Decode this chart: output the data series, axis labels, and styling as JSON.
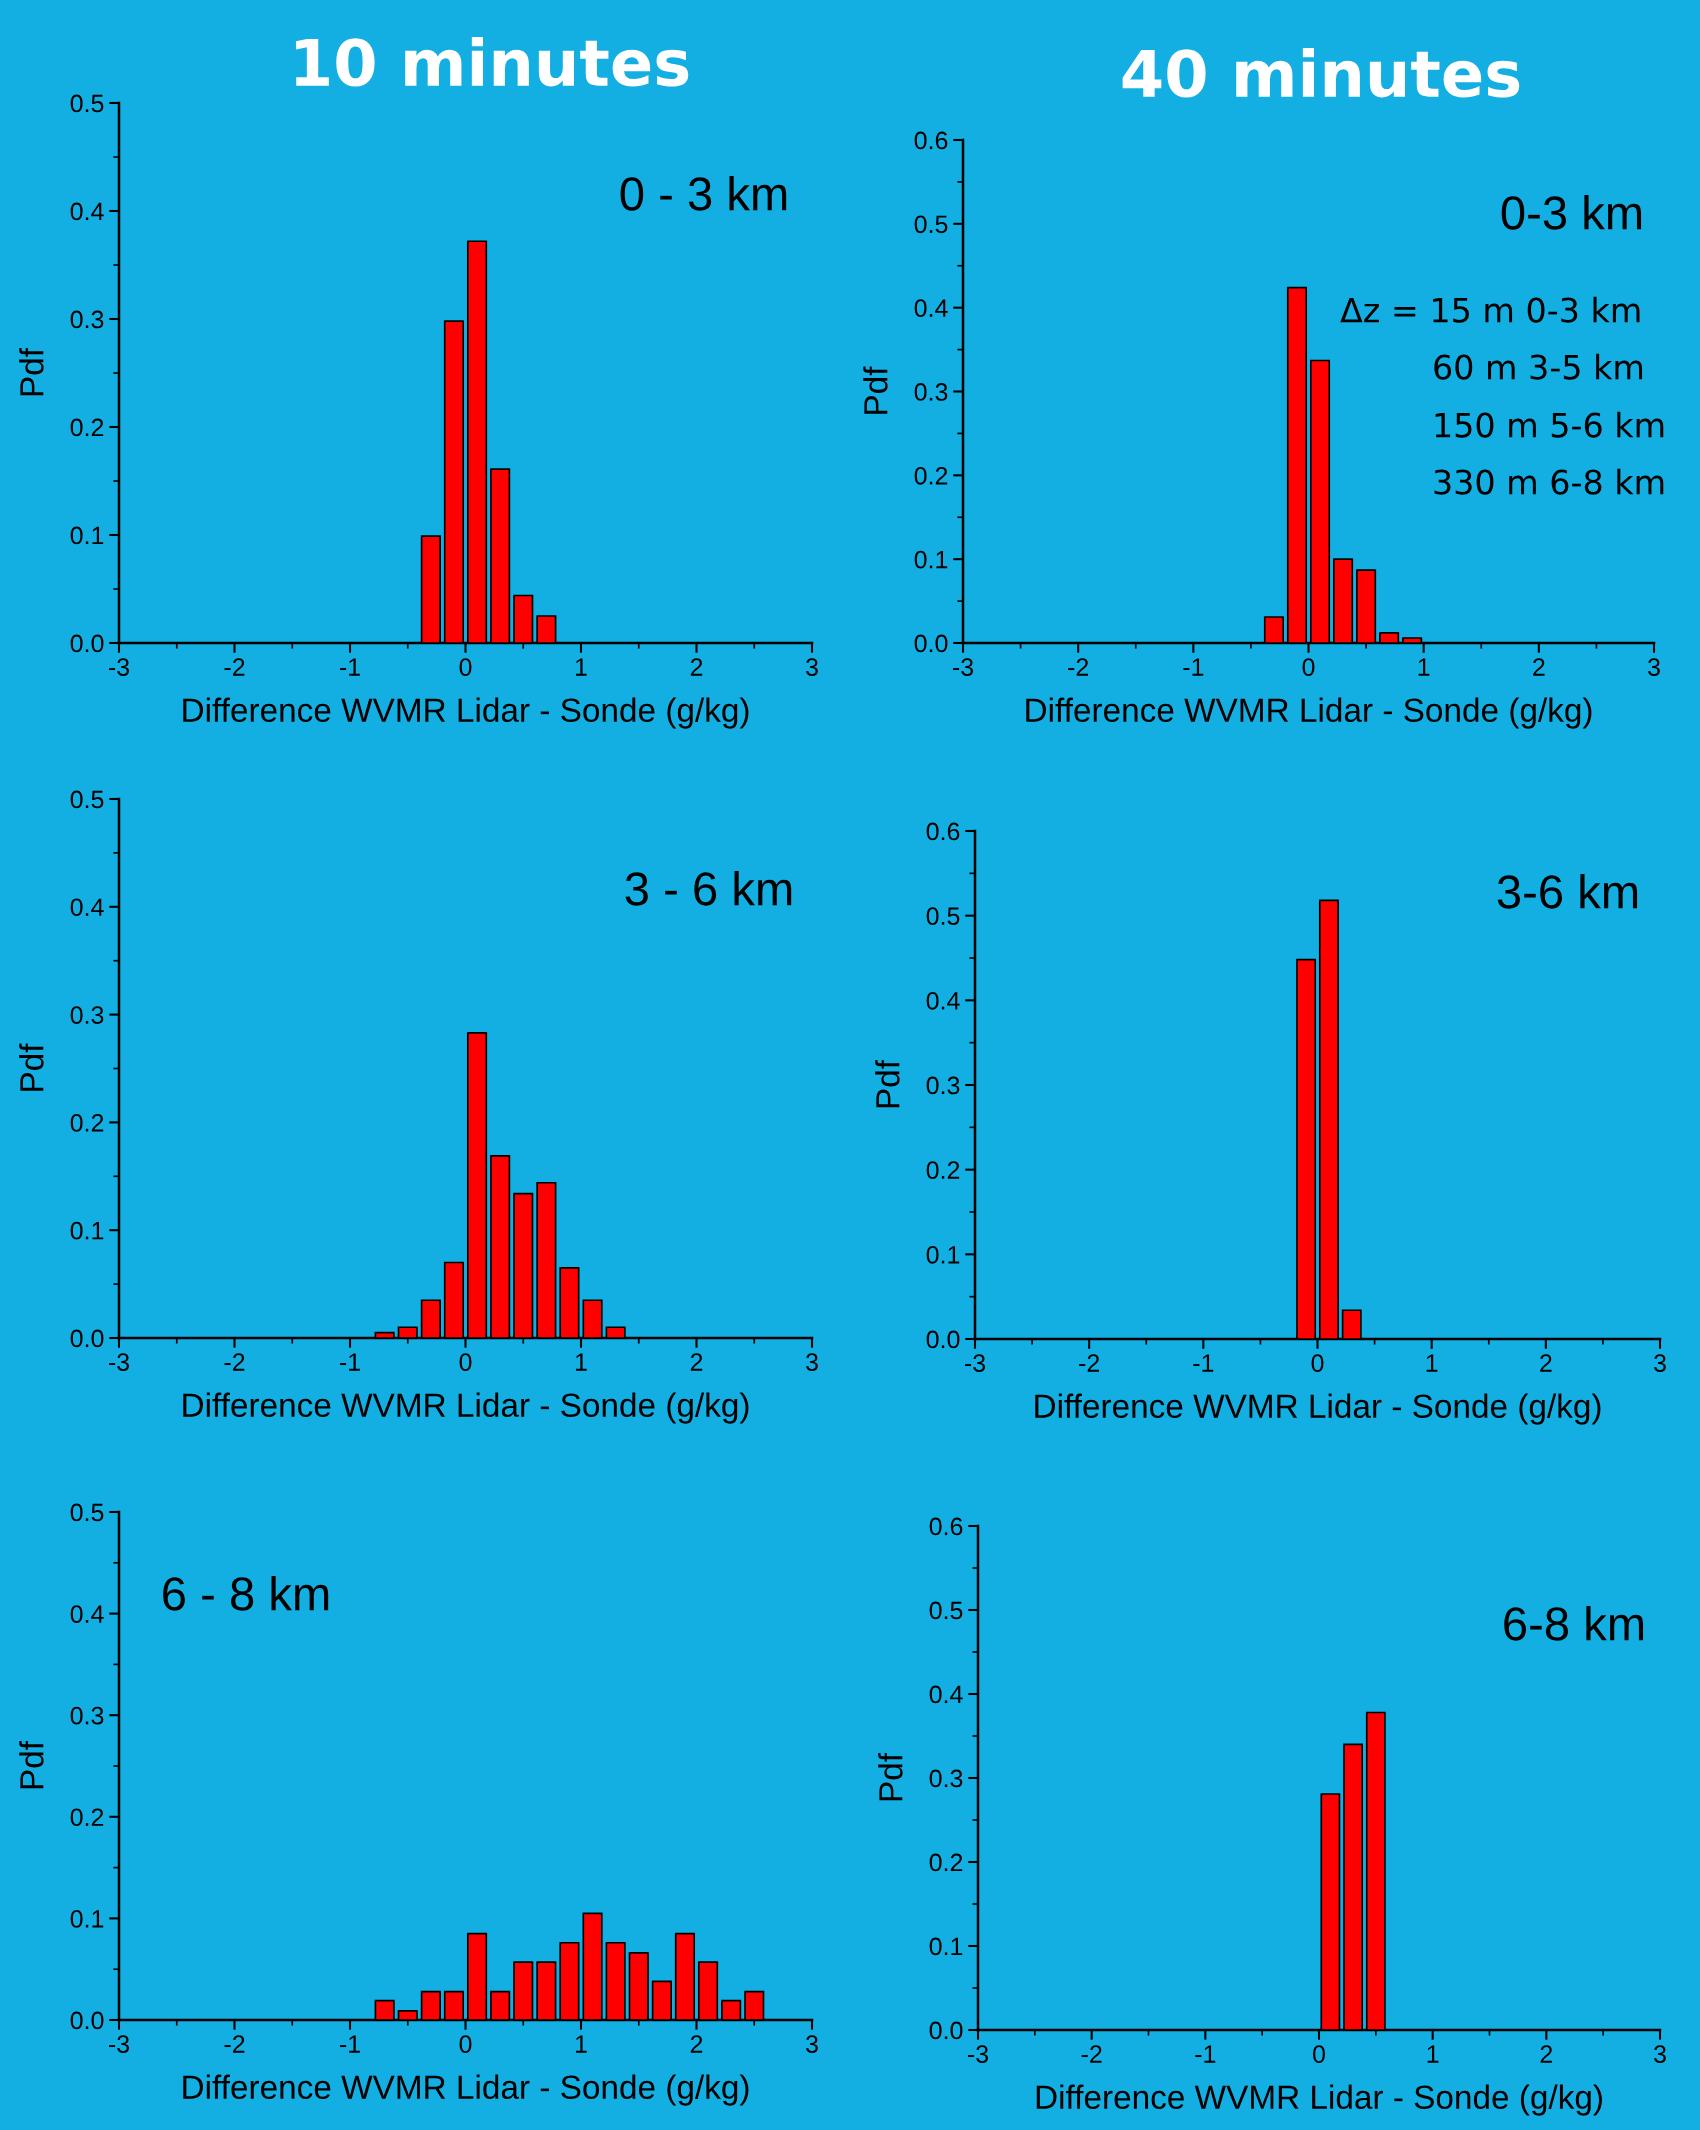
{
  "chart_data": [
    {
      "type": "histogram",
      "title": "10 minutes",
      "xlabel": "Difference WVMR Lidar - Sonde (g/kg)",
      "ylabel": "Pdf",
      "annotations": [
        "0 - 3 km"
      ],
      "color": "#ff0000",
      "bins": [
        -0.4,
        -0.2,
        0,
        0.2,
        0.4,
        0.6,
        0.8
      ],
      "values": [
        0.099,
        0.298,
        0.372,
        0.161,
        0.044,
        0.025
      ],
      "xlim": [
        -3,
        3
      ],
      "xticks": [
        -3,
        -2,
        -1,
        0,
        1,
        2,
        3
      ],
      "ylim": [
        0,
        0.5
      ],
      "yticks": [
        {
          "value": 0,
          "label": "0.0"
        },
        {
          "value": 0.1,
          "label": "0.1"
        },
        {
          "value": 0.2,
          "label": "0.2"
        },
        {
          "value": 0.3,
          "label": "0.3"
        },
        {
          "value": 0.4,
          "label": "0.4"
        },
        {
          "value": 0.5,
          "label": "0.5"
        }
      ]
    },
    {
      "type": "histogram",
      "title": "40 minutes",
      "xlabel": "Difference WVMR Lidar - Sonde (g/kg)",
      "ylabel": "Pdf",
      "annotations": [
        "0-3 km",
        "Δz = 15 m 0-3 km",
        "60 m 3-5 km",
        "150 m 5-6 km",
        "330 m 6-8 km"
      ],
      "color": "#ff0000",
      "bins": [
        -0.4,
        -0.2,
        0,
        0.2,
        0.4,
        0.6,
        0.8,
        1.0
      ],
      "values": [
        0.031,
        0.424,
        0.337,
        0.1,
        0.087,
        0.012,
        0.006
      ],
      "xlim": [
        -3,
        3
      ],
      "xticks": [
        -3,
        -2,
        -1,
        0,
        1,
        2,
        3
      ],
      "ylim": [
        0,
        0.6
      ],
      "yticks": [
        {
          "value": 0,
          "label": "0.0"
        },
        {
          "value": 0.1,
          "label": "0.1"
        },
        {
          "value": 0.2,
          "label": "0.2"
        },
        {
          "value": 0.3,
          "label": "0.3"
        },
        {
          "value": 0.4,
          "label": "0.4"
        },
        {
          "value": 0.5,
          "label": "0.5"
        },
        {
          "value": 0.6,
          "label": "0.6"
        }
      ]
    },
    {
      "type": "histogram",
      "xlabel": "Difference WVMR Lidar - Sonde (g/kg)",
      "ylabel": "Pdf",
      "annotations": [
        "3 - 6 km"
      ],
      "color": "#ff0000",
      "bins": [
        -0.8,
        -0.6,
        -0.4,
        -0.2,
        0,
        0.2,
        0.4,
        0.6,
        0.8,
        1.0,
        1.2,
        1.4
      ],
      "values": [
        0.005,
        0.01,
        0.035,
        0.07,
        0.283,
        0.169,
        0.134,
        0.144,
        0.065,
        0.035,
        0.01
      ],
      "xlim": [
        -3,
        3
      ],
      "xticks": [
        -3,
        -2,
        -1,
        0,
        1,
        2,
        3
      ],
      "ylim": [
        0,
        0.5
      ],
      "yticks": [
        {
          "value": 0,
          "label": "0.0"
        },
        {
          "value": 0.1,
          "label": "0.1"
        },
        {
          "value": 0.2,
          "label": "0.2"
        },
        {
          "value": 0.3,
          "label": "0.3"
        },
        {
          "value": 0.4,
          "label": "0.4"
        },
        {
          "value": 0.5,
          "label": "0.5"
        }
      ]
    },
    {
      "type": "histogram",
      "xlabel": "Difference WVMR Lidar - Sonde (g/kg)",
      "ylabel": "Pdf",
      "annotations": [
        "3-6 km"
      ],
      "color": "#ff0000",
      "bins": [
        -0.2,
        0,
        0.2,
        0.4
      ],
      "values": [
        0.448,
        0.518,
        0.034
      ],
      "xlim": [
        -3,
        3
      ],
      "xticks": [
        -3,
        -2,
        -1,
        0,
        1,
        2,
        3
      ],
      "ylim": [
        0,
        0.6
      ],
      "yticks": [
        {
          "value": 0,
          "label": "0.0"
        },
        {
          "value": 0.1,
          "label": "0.1"
        },
        {
          "value": 0.2,
          "label": "0.2"
        },
        {
          "value": 0.3,
          "label": "0.3"
        },
        {
          "value": 0.4,
          "label": "0.4"
        },
        {
          "value": 0.5,
          "label": "0.5"
        },
        {
          "value": 0.6,
          "label": "0.6"
        }
      ]
    },
    {
      "type": "histogram",
      "xlabel": "Difference WVMR Lidar - Sonde (g/kg)",
      "ylabel": "Pdf",
      "annotations": [
        "6 - 8 km"
      ],
      "color": "#ff0000",
      "bins": [
        -0.8,
        -0.6,
        -0.4,
        -0.2,
        0,
        0.2,
        0.4,
        0.6,
        0.8,
        1.0,
        1.2,
        1.4,
        1.6,
        1.8,
        2.0,
        2.2,
        2.4,
        2.6
      ],
      "values": [
        0.019,
        0.009,
        0.028,
        0.028,
        0.085,
        0.028,
        0.057,
        0.057,
        0.076,
        0.105,
        0.076,
        0.066,
        0.038,
        0.085,
        0.057,
        0.019,
        0.028
      ],
      "xlim": [
        -3,
        3
      ],
      "xticks": [
        -3,
        -2,
        -1,
        0,
        1,
        2,
        3
      ],
      "ylim": [
        0,
        0.5
      ],
      "yticks": [
        {
          "value": 0,
          "label": "0.0"
        },
        {
          "value": 0.1,
          "label": "0.1"
        },
        {
          "value": 0.2,
          "label": "0.2"
        },
        {
          "value": 0.3,
          "label": "0.3"
        },
        {
          "value": 0.4,
          "label": "0.4"
        },
        {
          "value": 0.5,
          "label": "0.5"
        }
      ]
    },
    {
      "type": "histogram",
      "xlabel": "Difference WVMR Lidar - Sonde (g/kg)",
      "ylabel": "Pdf",
      "annotations": [
        "6-8 km"
      ],
      "color": "#ff0000",
      "bins": [
        0,
        0.2,
        0.4,
        0.6
      ],
      "values": [
        0.281,
        0.34,
        0.378
      ],
      "xlim": [
        -3,
        3
      ],
      "xticks": [
        -3,
        -2,
        -1,
        0,
        1,
        2,
        3
      ],
      "ylim": [
        0,
        0.6
      ],
      "yticks": [
        {
          "value": 0,
          "label": "0.0"
        },
        {
          "value": 0.1,
          "label": "0.1"
        },
        {
          "value": 0.2,
          "label": "0.2"
        },
        {
          "value": 0.3,
          "label": "0.3"
        },
        {
          "value": 0.4,
          "label": "0.4"
        },
        {
          "value": 0.5,
          "label": "0.5"
        },
        {
          "value": 0.6,
          "label": "0.6"
        }
      ]
    }
  ]
}
